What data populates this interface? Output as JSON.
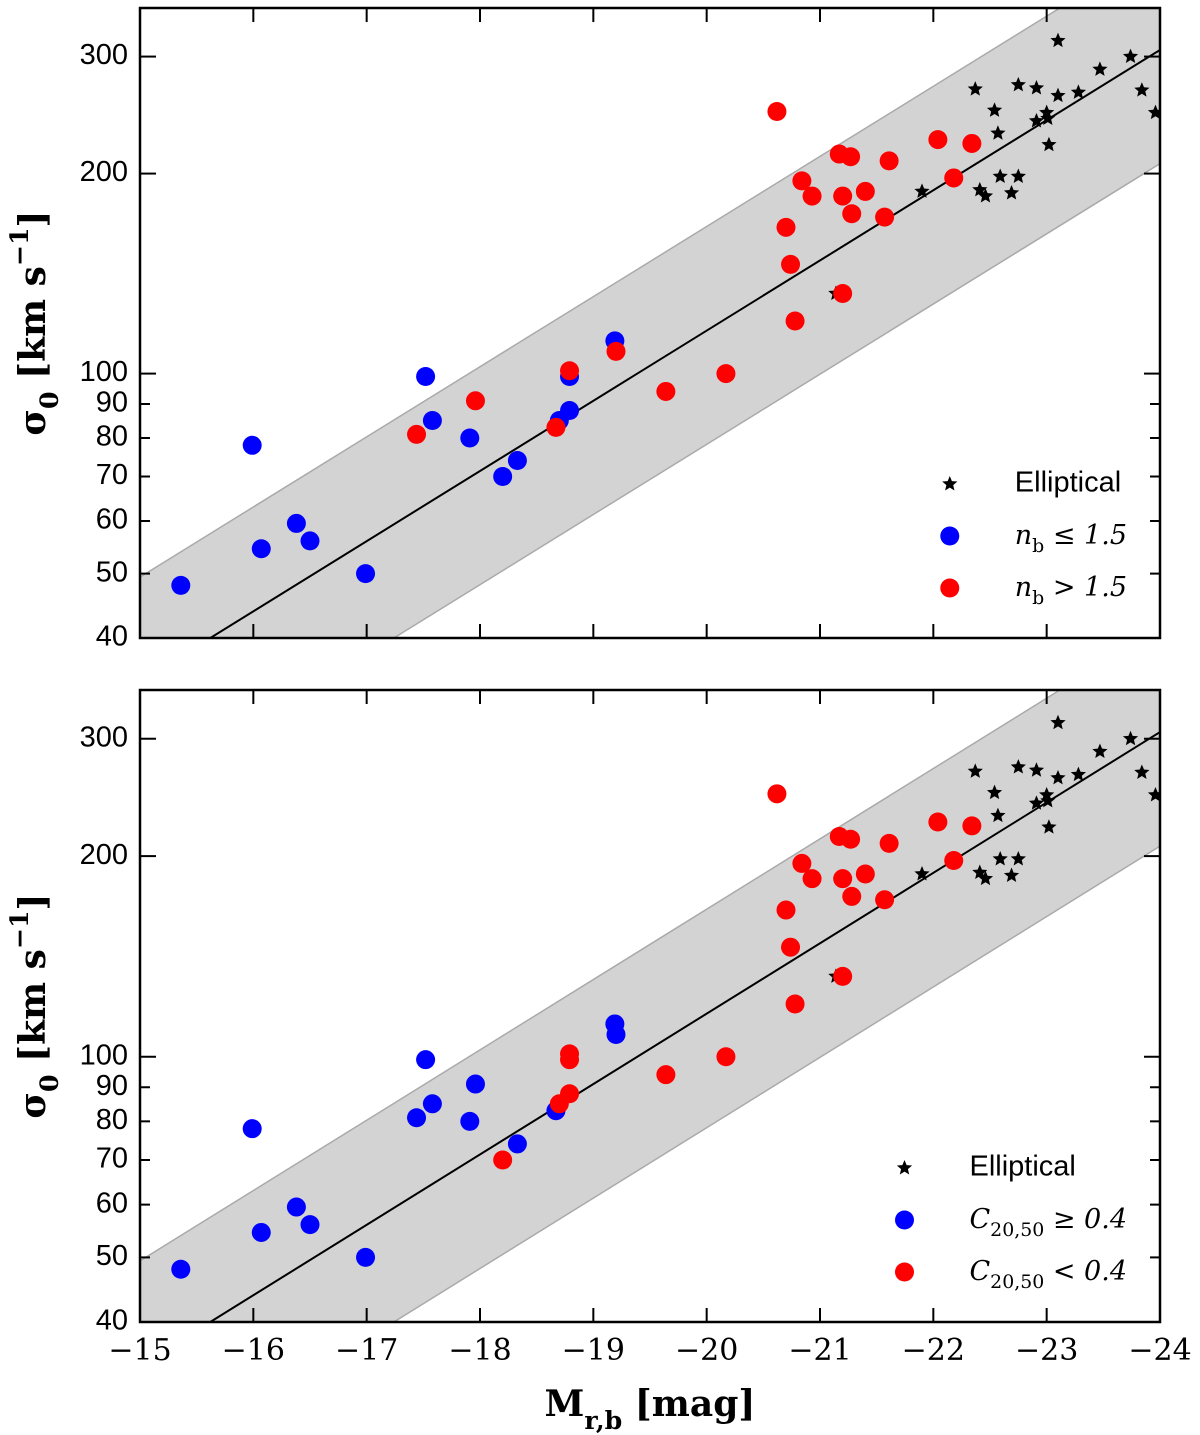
{
  "chart_data": [
    {
      "type": "scatter",
      "ylabel": "σ_0 [km s^{−1}]",
      "log_y": true,
      "legend": "lower right",
      "xlim": [
        -15,
        -24
      ],
      "ylim": [
        40,
        355
      ],
      "xticks": [
        -15,
        -16,
        -17,
        -18,
        -19,
        -20,
        -21,
        -22,
        -23,
        -24
      ],
      "yticks": [
        40,
        50,
        60,
        70,
        80,
        90,
        100,
        200,
        300
      ],
      "band": {
        "x": [
          -15,
          -24
        ],
        "upper": [
          49.4,
          440
        ],
        "lower": [
          23.2,
          207
        ],
        "color": "#d3d3d3"
      },
      "fit": {
        "x": [
          -15.62,
          -24
        ],
        "values": [
          40,
          307
        ],
        "color": "#000000"
      },
      "series": [
        {
          "name": "Elliptical",
          "marker": "star",
          "color": "#000000",
          "x": [
            -21.14,
            -21.9,
            -22.37,
            -22.41,
            -22.46,
            -22.54,
            -22.57,
            -22.59,
            -22.69,
            -22.75,
            -22.75,
            -22.91,
            -22.91,
            -23.0,
            -23.01,
            -23.02,
            -23.1,
            -23.1,
            -23.28,
            -23.47,
            -23.74,
            -23.84,
            -23.96
          ],
          "values": [
            132,
            188,
            268,
            189,
            185,
            249,
            230,
            198,
            187,
            272,
            198,
            269,
            240,
            247,
            242,
            221,
            317,
            262,
            265,
            287,
            300,
            267,
            247
          ]
        },
        {
          "name": "n_b ≤ 1.5",
          "marker": "circle",
          "color": "#0000ff",
          "x": [
            -15.36,
            -15.99,
            -16.07,
            -16.38,
            -16.5,
            -16.99,
            -17.52,
            -17.58,
            -17.91,
            -18.2,
            -18.33,
            -18.7,
            -18.79,
            -18.79,
            -19.19
          ],
          "values": [
            48,
            78,
            54.5,
            59.5,
            56,
            50,
            99,
            85,
            80,
            70,
            74,
            85,
            88,
            99,
            112
          ]
        },
        {
          "name": "n_b > 1.5",
          "marker": "circle",
          "color": "#ff0000",
          "x": [
            -17.44,
            -17.96,
            -18.67,
            -18.79,
            -19.2,
            -19.64,
            -20.17,
            -20.62,
            -20.7,
            -20.74,
            -20.78,
            -20.84,
            -20.93,
            -21.17,
            -21.2,
            -21.2,
            -21.27,
            -21.28,
            -21.4,
            -21.57,
            -21.61,
            -22.04,
            -22.18,
            -22.34
          ],
          "values": [
            81,
            91,
            83,
            101,
            108,
            94,
            100,
            248,
            166,
            146,
            120,
            195,
            185,
            214,
            185,
            132,
            212,
            174,
            188,
            172,
            209,
            225,
            197,
            222
          ]
        }
      ]
    },
    {
      "type": "scatter",
      "ylabel": "σ_0 [km s^{−1}]",
      "xlabel": "M_{r,b} [mag]",
      "log_y": true,
      "legend": "lower right",
      "xlim": [
        -15,
        -24
      ],
      "ylim": [
        40,
        355
      ],
      "xticks": [
        {
          "value": -15,
          "label": "−15"
        },
        {
          "value": -16,
          "label": "−16"
        },
        {
          "value": -17,
          "label": "−17"
        },
        {
          "value": -18,
          "label": "−18"
        },
        {
          "value": -19,
          "label": "−19"
        },
        {
          "value": -20,
          "label": "−20"
        },
        {
          "value": -21,
          "label": "−21"
        },
        {
          "value": -22,
          "label": "−22"
        },
        {
          "value": -23,
          "label": "−23"
        },
        {
          "value": -24,
          "label": "−24"
        }
      ],
      "yticks": [
        40,
        50,
        60,
        70,
        80,
        90,
        100,
        200,
        300
      ],
      "band": {
        "x": [
          -15,
          -24
        ],
        "upper": [
          49.4,
          440
        ],
        "lower": [
          23.2,
          207
        ],
        "color": "#d3d3d3"
      },
      "fit": {
        "x": [
          -15.62,
          -24
        ],
        "values": [
          40,
          307
        ],
        "color": "#000000"
      },
      "series": [
        {
          "name": "Elliptical",
          "marker": "star",
          "color": "#000000",
          "x": [
            -21.14,
            -21.9,
            -22.37,
            -22.41,
            -22.46,
            -22.54,
            -22.57,
            -22.59,
            -22.69,
            -22.75,
            -22.75,
            -22.91,
            -22.91,
            -23.0,
            -23.01,
            -23.02,
            -23.1,
            -23.1,
            -23.28,
            -23.47,
            -23.74,
            -23.84,
            -23.96
          ],
          "values": [
            132,
            188,
            268,
            189,
            185,
            249,
            230,
            198,
            187,
            272,
            198,
            269,
            240,
            247,
            242,
            221,
            317,
            262,
            265,
            287,
            300,
            267,
            247
          ]
        },
        {
          "name": "C_{20,50} ≥ 0.4",
          "marker": "circle",
          "color": "#0000ff",
          "x": [
            -15.36,
            -15.99,
            -16.07,
            -16.38,
            -16.5,
            -16.99,
            -17.52,
            -17.58,
            -17.44,
            -17.96,
            -17.91,
            -18.33,
            -18.67,
            -19.19,
            -19.2
          ],
          "values": [
            48,
            78,
            54.5,
            59.5,
            56,
            50,
            99,
            85,
            81,
            91,
            80,
            74,
            83,
            112,
            108
          ]
        },
        {
          "name": "C_{20,50} < 0.4",
          "marker": "circle",
          "color": "#ff0000",
          "x": [
            -18.2,
            -18.7,
            -18.79,
            -18.79,
            -18.79,
            -19.64,
            -20.17,
            -20.62,
            -20.7,
            -20.74,
            -20.78,
            -20.84,
            -20.93,
            -21.17,
            -21.2,
            -21.2,
            -21.27,
            -21.28,
            -21.4,
            -21.57,
            -21.61,
            -22.04,
            -22.18,
            -22.34
          ],
          "values": [
            70,
            85,
            88,
            99,
            101,
            94,
            100,
            248,
            166,
            146,
            120,
            195,
            185,
            214,
            185,
            132,
            212,
            174,
            188,
            172,
            209,
            225,
            197,
            222
          ]
        }
      ]
    }
  ]
}
